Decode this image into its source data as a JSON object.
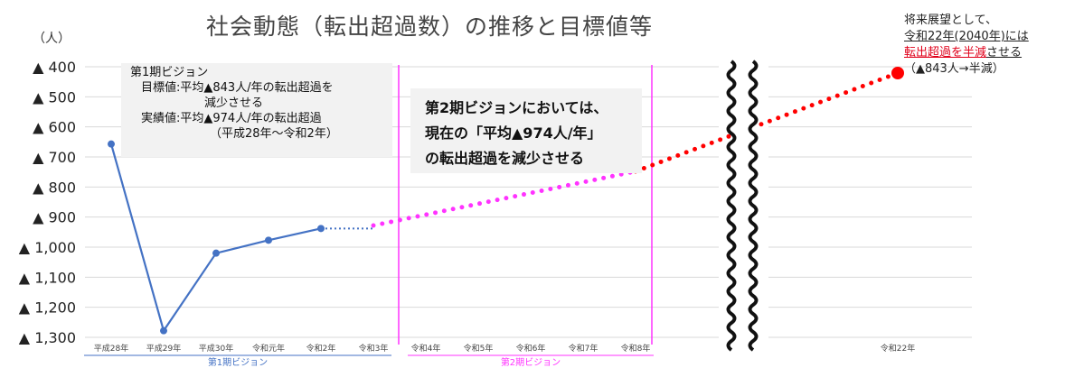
{
  "chart_data": {
    "type": "line",
    "title": "社会動態（転出超過数）の推移と目標値等",
    "y_unit": "（人）",
    "y_ticks": [
      "▲ 400",
      "▲ 500",
      "▲ 600",
      "▲ 700",
      "▲ 800",
      "▲ 900",
      "▲ 1,000",
      "▲ 1,100",
      "▲ 1,200",
      "▲ 1,300"
    ],
    "y_tick_values": [
      -400,
      -500,
      -600,
      -700,
      -800,
      -900,
      -1000,
      -1100,
      -1200,
      -1300
    ],
    "ylim": [
      -1300,
      -400
    ],
    "y_reversed": true,
    "grid": true,
    "x_ticks": [
      "平成28年",
      "平成29年",
      "平成30年",
      "令和元年",
      "令和2年",
      "令和3年",
      "令和4年",
      "令和5年",
      "令和6年",
      "令和7年",
      "令和8年",
      "令和22年"
    ],
    "series": [
      {
        "style": "solid line with markers",
        "color": "#4472c4",
        "x": [
          "平成28年",
          "平成29年",
          "平成30年",
          "令和元年",
          "令和2年"
        ],
        "values": [
          -657,
          -1278,
          -1020,
          -977,
          -938
        ]
      },
      {
        "style": "dotted line",
        "color": "#4472c4",
        "x": [
          "令和2年",
          "令和3年"
        ],
        "values": [
          -938,
          -938
        ]
      },
      {
        "style": "dotted line",
        "color": "#ff33ff",
        "x": [
          "令和3年",
          "令和8年"
        ],
        "values": [
          -928,
          -748
        ]
      },
      {
        "style": "dotted line",
        "color": "#ff0000",
        "x": [
          "令和8年",
          "令和22年"
        ],
        "values": [
          -748,
          -421
        ]
      }
    ],
    "target_point": {
      "x": "令和22年",
      "value": -421,
      "color": "#ff0000"
    },
    "period_brackets": [
      {
        "label": "第1期ビジョン",
        "color": "#4472c4",
        "from": "平成28年",
        "to": "令和3年"
      },
      {
        "label": "第2期ビジョン",
        "color": "#ff33ff",
        "from": "令和4年",
        "to": "令和8年"
      }
    ]
  },
  "annotations": {
    "vision1": {
      "title": "第1期ビジョン",
      "target_line1": "目標値:平均▲843人/年の転出超過を",
      "target_line2": "減少させる",
      "actual_line1": "実績値:平均▲974人/年の転出超過",
      "actual_line2": "（平成28年～令和2年）"
    },
    "vision2": {
      "line1": "第2期ビジョンにおいては、",
      "line2": "現在の「平均▲974人/年」",
      "line3": "の転出超過を減少させる"
    },
    "future": {
      "line1": "将来展望として、",
      "line2": "令和22年(2040年)には",
      "line3_red": "転出超過を半減",
      "line3_rest": "させる",
      "line4": "（▲843人→半減）"
    }
  }
}
